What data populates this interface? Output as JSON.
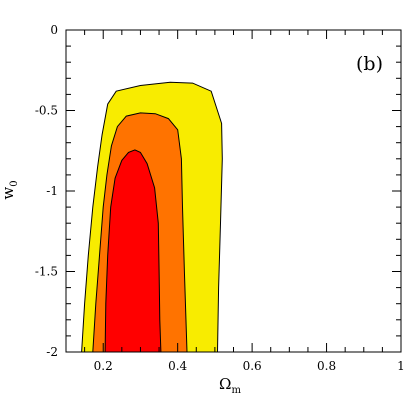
{
  "chart_data": {
    "type": "contour",
    "panel_label": "(b)",
    "xlabel": {
      "main": "Ω",
      "sub": "m"
    },
    "ylabel": {
      "main": "w",
      "sub": "0"
    },
    "xlim": [
      0.1,
      1.0
    ],
    "ylim": [
      -2.0,
      0.0
    ],
    "x_ticks": [
      {
        "value": 0.2,
        "label": "0.2"
      },
      {
        "value": 0.4,
        "label": "0.4"
      },
      {
        "value": 0.6,
        "label": "0.6"
      },
      {
        "value": 0.8,
        "label": "0.8"
      },
      {
        "value": 1.0,
        "label": "1"
      }
    ],
    "y_ticks": [
      {
        "value": 0.0,
        "label": "0"
      },
      {
        "value": -0.5,
        "label": "-0.5"
      },
      {
        "value": -1.0,
        "label": "-1"
      },
      {
        "value": -1.5,
        "label": "-1.5"
      },
      {
        "value": -2.0,
        "label": "-2"
      }
    ],
    "minor_x_step": 0.05,
    "minor_y_step": 0.1,
    "regions": [
      {
        "level": "outer",
        "color": "#f8ec00",
        "points": [
          [
            0.142,
            -2.0
          ],
          [
            0.15,
            -1.7
          ],
          [
            0.16,
            -1.4
          ],
          [
            0.172,
            -1.1
          ],
          [
            0.185,
            -0.85
          ],
          [
            0.197,
            -0.65
          ],
          [
            0.212,
            -0.46
          ],
          [
            0.235,
            -0.38
          ],
          [
            0.3,
            -0.345
          ],
          [
            0.38,
            -0.325
          ],
          [
            0.44,
            -0.33
          ],
          [
            0.49,
            -0.38
          ],
          [
            0.518,
            -0.58
          ],
          [
            0.52,
            -0.8
          ],
          [
            0.515,
            -1.2
          ],
          [
            0.51,
            -1.6
          ],
          [
            0.507,
            -2.0
          ]
        ]
      },
      {
        "level": "middle",
        "color": "#ff7300",
        "points": [
          [
            0.172,
            -2.0
          ],
          [
            0.18,
            -1.7
          ],
          [
            0.19,
            -1.4
          ],
          [
            0.2,
            -1.1
          ],
          [
            0.21,
            -0.9
          ],
          [
            0.222,
            -0.72
          ],
          [
            0.238,
            -0.6
          ],
          [
            0.262,
            -0.535
          ],
          [
            0.3,
            -0.515
          ],
          [
            0.34,
            -0.52
          ],
          [
            0.375,
            -0.55
          ],
          [
            0.4,
            -0.62
          ],
          [
            0.41,
            -0.8
          ],
          [
            0.413,
            -1.1
          ],
          [
            0.418,
            -1.5
          ],
          [
            0.425,
            -2.0
          ]
        ]
      },
      {
        "level": "inner",
        "color": "#ff0000",
        "points": [
          [
            0.205,
            -2.0
          ],
          [
            0.207,
            -1.7
          ],
          [
            0.212,
            -1.4
          ],
          [
            0.22,
            -1.1
          ],
          [
            0.232,
            -0.92
          ],
          [
            0.25,
            -0.81
          ],
          [
            0.268,
            -0.76
          ],
          [
            0.285,
            -0.745
          ],
          [
            0.3,
            -0.76
          ],
          [
            0.318,
            -0.83
          ],
          [
            0.338,
            -0.98
          ],
          [
            0.348,
            -1.2
          ],
          [
            0.35,
            -1.5
          ],
          [
            0.352,
            -1.8
          ],
          [
            0.355,
            -2.0
          ]
        ]
      }
    ]
  }
}
